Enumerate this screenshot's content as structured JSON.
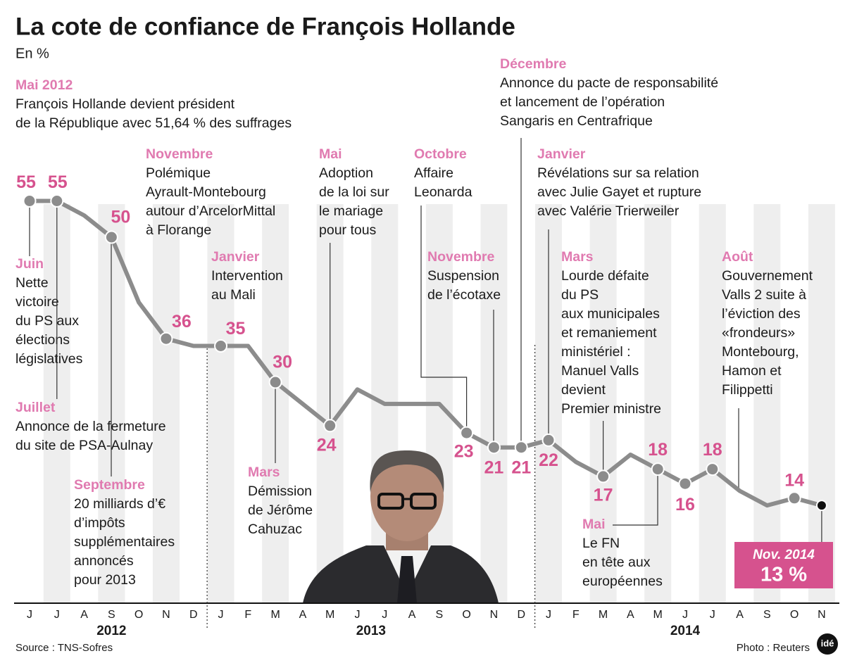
{
  "chart_data": {
    "type": "line",
    "title": "La cote de confiance de François Hollande",
    "subtitle": "En %",
    "year_groups": [
      {
        "label": "2012",
        "months": [
          "J",
          "J",
          "A",
          "S",
          "O",
          "N",
          "D"
        ]
      },
      {
        "label": "2013",
        "months": [
          "J",
          "F",
          "M",
          "A",
          "M",
          "J",
          "J",
          "A",
          "S",
          "O",
          "N",
          "D"
        ]
      },
      {
        "label": "2014",
        "months": [
          "J",
          "F",
          "M",
          "A",
          "M",
          "J",
          "J",
          "A",
          "S",
          "O",
          "N"
        ]
      }
    ],
    "values": [
      55,
      55,
      53,
      50,
      41,
      36,
      35,
      35,
      35,
      30,
      27,
      24,
      29,
      27,
      27,
      27,
      23,
      21,
      21,
      22,
      19,
      17,
      20,
      18,
      16,
      18,
      15,
      13,
      14,
      13
    ],
    "value_labels": [
      "55",
      "55",
      null,
      "50",
      null,
      "36",
      null,
      "35",
      null,
      "30",
      null,
      "24",
      null,
      null,
      null,
      null,
      "23",
      "21",
      "21",
      "22",
      null,
      "17",
      null,
      "18",
      "16",
      "18",
      null,
      null,
      "14",
      "13 %"
    ],
    "color": "#8c8c8c",
    "label_color": "#d6528e",
    "last_point_label": "Nov. 2014",
    "annotations": [
      {
        "title": "Mai 2012",
        "lines": [
          "François Hollande devient président",
          "de la République avec 51,64 % des suffrages"
        ]
      },
      {
        "title": "Juin",
        "lines": [
          "Nette",
          "victoire",
          "du PS aux",
          "élections",
          "législatives"
        ]
      },
      {
        "title": "Juillet",
        "lines": [
          "Annonce de la fermeture",
          "du site de PSA-Aulnay"
        ]
      },
      {
        "title": "Septembre",
        "lines": [
          "20 milliards d’€",
          "d’impôts",
          "supplémentaires",
          "annoncés",
          "pour 2013"
        ]
      },
      {
        "title": "Novembre",
        "lines": [
          "Polémique",
          "Ayrault-Montebourg",
          "autour d’ArcelorMittal",
          "à Florange"
        ]
      },
      {
        "title": "Janvier",
        "lines": [
          "Intervention",
          "au Mali"
        ]
      },
      {
        "title": "Mars",
        "lines": [
          "Démission",
          "de Jérôme",
          "Cahuzac"
        ]
      },
      {
        "title": "Mai",
        "lines": [
          "Adoption",
          "de la loi sur",
          "le mariage",
          "pour tous"
        ]
      },
      {
        "title": "Octobre",
        "lines": [
          "Affaire",
          "Leonarda"
        ]
      },
      {
        "title": "Novembre",
        "lines": [
          "Suspension",
          "de l’écotaxe"
        ]
      },
      {
        "title": "Décembre",
        "lines": [
          "Annonce du pacte de responsabilité",
          "et lancement de l’opération",
          "Sangaris en Centrafrique"
        ]
      },
      {
        "title": "Janvier",
        "lines": [
          "Révélations sur sa relation",
          "avec Julie Gayet et rupture",
          "avec Valérie Trierweiler"
        ]
      },
      {
        "title": "Mars",
        "lines": [
          "Lourde défaite",
          "du PS",
          "aux municipales",
          "et remaniement",
          "ministériel :",
          "Manuel Valls",
          "devient",
          "Premier ministre"
        ]
      },
      {
        "title": "Mai",
        "lines": [
          "Le FN",
          "en tête aux",
          "européennes"
        ]
      },
      {
        "title": "Août",
        "lines": [
          "Gouvernement",
          "Valls 2 suite à",
          "l’éviction des",
          "«frondeurs»",
          "Montebourg,",
          "Hamon et",
          "Filippetti"
        ]
      }
    ],
    "source": "Source : TNS-Sofres",
    "credit": "Photo : Reuters",
    "logo": "idé"
  }
}
